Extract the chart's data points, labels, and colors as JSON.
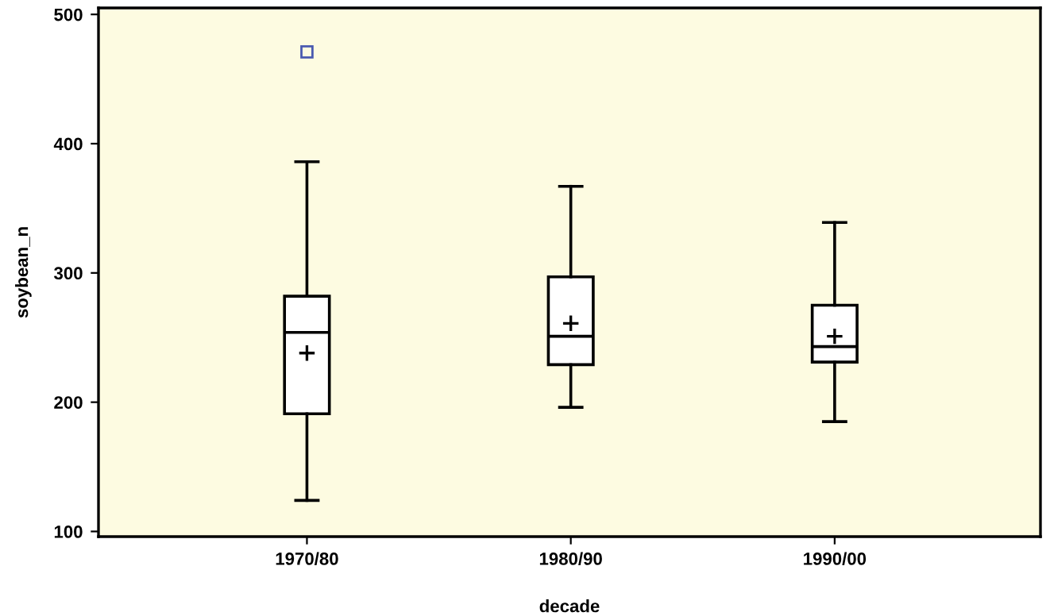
{
  "chart_data": {
    "type": "box",
    "xlabel": "decade",
    "ylabel": "soybean_n",
    "categories": [
      "1970/80",
      "1980/90",
      "1990/00"
    ],
    "boxes": [
      {
        "low": 124,
        "q1": 191,
        "median": 254,
        "q3": 282,
        "high": 386,
        "mean": 238,
        "outliers": [
          471
        ]
      },
      {
        "low": 196,
        "q1": 229,
        "median": 251,
        "q3": 297,
        "high": 367,
        "mean": 261
      },
      {
        "low": 185,
        "q1": 231,
        "median": 243,
        "q3": 275,
        "high": 339,
        "mean": 251
      }
    ],
    "color": "#000000",
    "ylim": [
      96,
      505
    ],
    "yticks": [
      100,
      200,
      300,
      400,
      500
    ],
    "grid": false,
    "legend": false
  }
}
